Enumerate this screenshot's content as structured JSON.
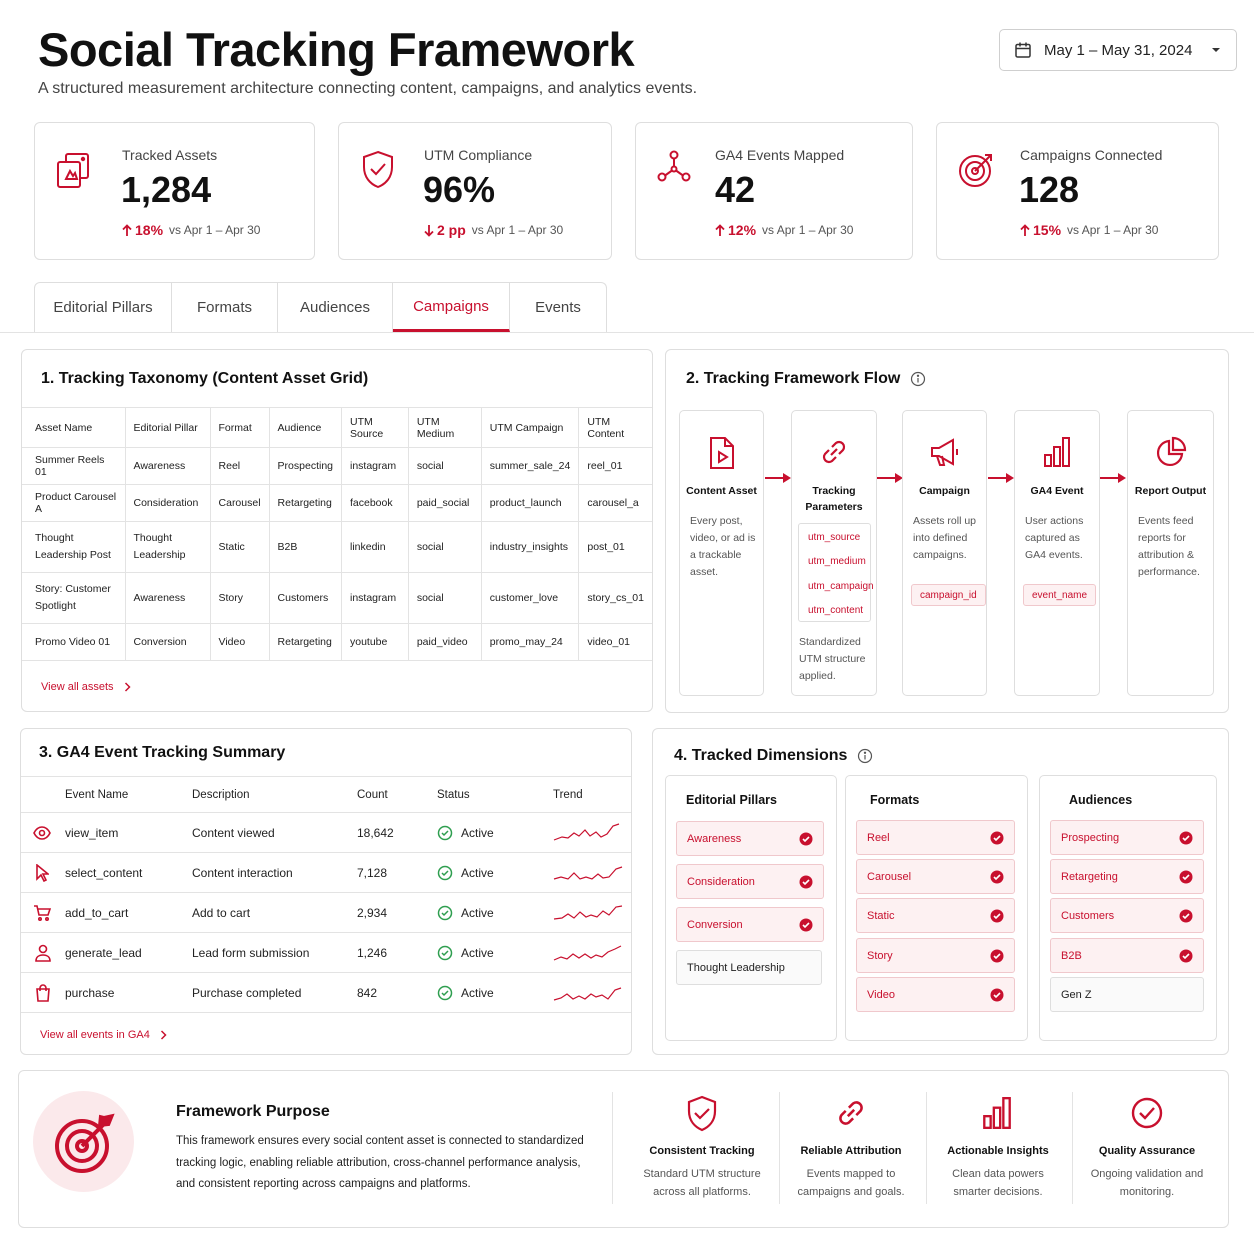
{
  "header": {
    "title": "Social Tracking Framework",
    "subtitle": "A structured measurement architecture connecting content, campaigns, and analytics events.",
    "date_range": "May 1 – May 31, 2024"
  },
  "kpis": [
    {
      "label": "Tracked Assets",
      "value": "1,284",
      "delta": "18%",
      "direction": "up",
      "compare": "vs Apr 1 – Apr 30",
      "icon": "assets-icon"
    },
    {
      "label": "UTM Compliance",
      "value": "96%",
      "delta": "2 pp",
      "direction": "down",
      "compare": "vs Apr 1 – Apr 30",
      "icon": "shield-check-icon"
    },
    {
      "label": "GA4 Events Mapped",
      "value": "42",
      "delta": "12%",
      "direction": "up",
      "compare": "vs Apr 1 – Apr 30",
      "icon": "network-icon"
    },
    {
      "label": "Campaigns Connected",
      "value": "128",
      "delta": "15%",
      "direction": "up",
      "compare": "vs Apr 1 – Apr 30",
      "icon": "target-icon"
    }
  ],
  "tabs": [
    "Editorial Pillars",
    "Formats",
    "Audiences",
    "Campaigns",
    "Events"
  ],
  "active_tab": "Campaigns",
  "taxonomy": {
    "title": "1. Tracking Taxonomy (Content Asset Grid)",
    "columns": [
      "Asset Name",
      "Editorial Pillar",
      "Format",
      "Audience",
      "UTM Source",
      "UTM Medium",
      "UTM Campaign",
      "UTM Content"
    ],
    "rows": [
      [
        "Summer Reels 01",
        "Awareness",
        "Reel",
        "Prospecting",
        "instagram",
        "social",
        "summer_sale_24",
        "reel_01"
      ],
      [
        "Product Carousel A",
        "Consideration",
        "Carousel",
        "Retargeting",
        "facebook",
        "paid_social",
        "product_launch",
        "carousel_a"
      ],
      [
        "Thought Leadership Post",
        "Thought Leadership",
        "Static",
        "B2B",
        "linkedin",
        "social",
        "industry_insights",
        "post_01"
      ],
      [
        "Story: Customer Spotlight",
        "Awareness",
        "Story",
        "Customers",
        "instagram",
        "social",
        "customer_love",
        "story_cs_01"
      ],
      [
        "Promo Video 01",
        "Conversion",
        "Video",
        "Retargeting",
        "youtube",
        "paid_video",
        "promo_may_24",
        "video_01"
      ]
    ],
    "link": "View all assets"
  },
  "flow": {
    "title": "2. Tracking Framework Flow",
    "steps": [
      {
        "title": "Content Asset",
        "desc": "Every post, video, or ad is a trackable asset.",
        "icon": "file-play-icon"
      },
      {
        "title": "Tracking Parameters",
        "params": [
          "utm_source",
          "utm_medium",
          "utm_campaign",
          "utm_content"
        ],
        "desc": "Standardized UTM structure applied.",
        "icon": "link-icon"
      },
      {
        "title": "Campaign",
        "desc": "Assets roll up into defined campaigns.",
        "chip": "campaign_id",
        "icon": "megaphone-icon"
      },
      {
        "title": "GA4 Event",
        "desc": "User actions captured as GA4 events.",
        "chip": "event_name",
        "icon": "bar-chart-icon"
      },
      {
        "title": "Report Output",
        "desc": "Events feed reports for attribution & performance.",
        "icon": "pie-chart-icon"
      }
    ]
  },
  "events": {
    "title": "3. GA4 Event Tracking Summary",
    "columns": [
      "Event Name",
      "Description",
      "Count",
      "Status",
      "Trend"
    ],
    "rows": [
      {
        "icon": "eye-icon",
        "name": "view_item",
        "desc": "Content viewed",
        "count": "18,642",
        "status": "Active"
      },
      {
        "icon": "cursor-icon",
        "name": "select_content",
        "desc": "Content interaction",
        "count": "7,128",
        "status": "Active"
      },
      {
        "icon": "cart-icon",
        "name": "add_to_cart",
        "desc": "Add to cart",
        "count": "2,934",
        "status": "Active"
      },
      {
        "icon": "user-icon",
        "name": "generate_lead",
        "desc": "Lead form submission",
        "count": "1,246",
        "status": "Active"
      },
      {
        "icon": "bag-icon",
        "name": "purchase",
        "desc": "Purchase completed",
        "count": "842",
        "status": "Active"
      }
    ],
    "link": "View all events in GA4"
  },
  "dimensions": {
    "title": "4. Tracked Dimensions",
    "groups": [
      {
        "title": "Editorial Pillars",
        "items": [
          {
            "label": "Awareness",
            "checked": true
          },
          {
            "label": "Consideration",
            "checked": true
          },
          {
            "label": "Conversion",
            "checked": true
          },
          {
            "label": "Thought Leadership",
            "checked": false
          }
        ]
      },
      {
        "title": "Formats",
        "items": [
          {
            "label": "Reel",
            "checked": true
          },
          {
            "label": "Carousel",
            "checked": true
          },
          {
            "label": "Static",
            "checked": true
          },
          {
            "label": "Story",
            "checked": true
          },
          {
            "label": "Video",
            "checked": true
          }
        ]
      },
      {
        "title": "Audiences",
        "items": [
          {
            "label": "Prospecting",
            "checked": true
          },
          {
            "label": "Retargeting",
            "checked": true
          },
          {
            "label": "Customers",
            "checked": true
          },
          {
            "label": "B2B",
            "checked": true
          },
          {
            "label": "Gen Z",
            "checked": false
          }
        ]
      }
    ]
  },
  "purpose": {
    "title": "Framework Purpose",
    "text": "This framework ensures every social content asset is connected to standardized tracking logic, enabling reliable attribution, cross-channel performance analysis, and consistent reporting across campaigns and platforms.",
    "features": [
      {
        "title": "Consistent Tracking",
        "desc": "Standard UTM structure across all platforms.",
        "icon": "shield-check-icon"
      },
      {
        "title": "Reliable Attribution",
        "desc": "Events mapped to campaigns and goals.",
        "icon": "link-icon"
      },
      {
        "title": "Actionable Insights",
        "desc": "Clean data powers smarter decisions.",
        "icon": "bar-chart-icon"
      },
      {
        "title": "Quality Assurance",
        "desc": "Ongoing validation and monitoring.",
        "icon": "check-circle-icon"
      }
    ]
  },
  "colors": {
    "accent": "#c8102e",
    "pill_bg": "#fdf1f2",
    "border": "#dedede",
    "active_green": "#2e9e4f"
  }
}
